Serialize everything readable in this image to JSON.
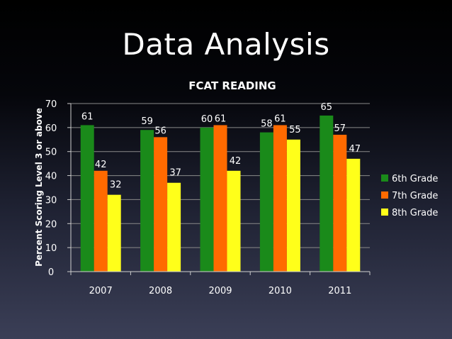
{
  "slide": {
    "title": "Data Analysis"
  },
  "chart_data": {
    "type": "bar",
    "title": "FCAT READING",
    "ylabel": "Percent Scoring Level  3 or above",
    "xlabel": "",
    "categories": [
      "2007",
      "2008",
      "2009",
      "2010",
      "2011"
    ],
    "ylim": [
      0,
      70
    ],
    "yticks": [
      0,
      10,
      20,
      30,
      40,
      50,
      60,
      70
    ],
    "grid": true,
    "legend_position": "right",
    "series": [
      {
        "name": "6th Grade",
        "color": "#1a8a1a",
        "values": [
          61,
          59,
          60,
          58,
          65
        ]
      },
      {
        "name": "7th Grade",
        "color": "#ff6a00",
        "values": [
          42,
          56,
          61,
          61,
          57
        ]
      },
      {
        "name": "8th Grade",
        "color": "#ffff1a",
        "values": [
          32,
          37,
          42,
          55,
          47
        ]
      }
    ]
  }
}
